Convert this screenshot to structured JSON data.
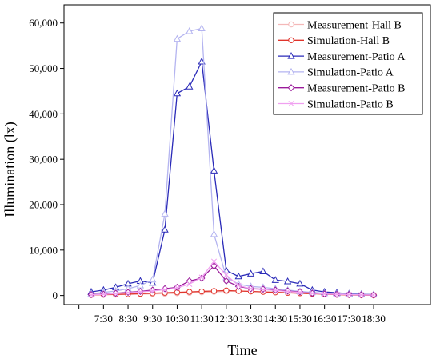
{
  "chart_data": {
    "type": "line",
    "xlabel": "Time",
    "ylabel": "Illumination (lx)",
    "x": [
      "7:00",
      "7:30",
      "8:00",
      "8:30",
      "9:00",
      "9:30",
      "10:00",
      "10:30",
      "11:00",
      "11:30",
      "12:00",
      "12:30",
      "13:00",
      "13:30",
      "14:00",
      "14:30",
      "15:00",
      "15:30",
      "16:00",
      "16:30",
      "17:00",
      "17:30",
      "18:00",
      "18:30"
    ],
    "x_tick_labels": [
      "7:30",
      "8:30",
      "9:30",
      "10:30",
      "11:30",
      "12:30",
      "13:30",
      "14:30",
      "15:30",
      "16:30",
      "17:30",
      "18:30"
    ],
    "ylim": [
      -2000,
      64000
    ],
    "y_ticks": [
      0,
      10000,
      20000,
      30000,
      40000,
      50000,
      60000
    ],
    "y_tick_labels": [
      "0",
      "10,000",
      "20,000",
      "30,000",
      "40,000",
      "50,000",
      "60,000"
    ],
    "legend_position": "top-right",
    "series": [
      {
        "name": "Measurement-Hall B",
        "color": "#f4b8b8",
        "marker": "circle",
        "values": [
          100,
          150,
          200,
          250,
          300,
          350,
          400,
          500,
          600,
          700,
          800,
          900,
          1000,
          900,
          800,
          700,
          600,
          500,
          400,
          300,
          200,
          150,
          100,
          80
        ]
      },
      {
        "name": "Simulation-Hall B",
        "color": "#e0342b",
        "marker": "circle",
        "values": [
          150,
          200,
          250,
          300,
          400,
          500,
          600,
          700,
          800,
          900,
          1000,
          1100,
          1000,
          900,
          800,
          700,
          600,
          500,
          400,
          300,
          200,
          150,
          100,
          80
        ]
      },
      {
        "name": "Measurement-Patio A",
        "color": "#2a2ab8",
        "marker": "triangle",
        "values": [
          800,
          1200,
          1800,
          2600,
          3200,
          2800,
          14500,
          44500,
          46000,
          51500,
          27500,
          5500,
          4200,
          4800,
          5300,
          3400,
          3100,
          2600,
          1200,
          800,
          600,
          400,
          300,
          200
        ]
      },
      {
        "name": "Simulation-Patio A",
        "color": "#b4b4f0",
        "marker": "triangle",
        "values": [
          400,
          700,
          1000,
          1500,
          2200,
          3500,
          18000,
          56500,
          58200,
          58800,
          13500,
          4000,
          2500,
          2000,
          1800,
          1500,
          1200,
          900,
          700,
          500,
          400,
          300,
          250,
          200
        ]
      },
      {
        "name": "Measurement-Patio B",
        "color": "#9a1a9a",
        "marker": "diamond",
        "values": [
          200,
          300,
          500,
          700,
          900,
          1200,
          1500,
          1800,
          3200,
          3800,
          6500,
          3200,
          2000,
          1500,
          1400,
          1200,
          1000,
          800,
          500,
          350,
          250,
          200,
          150,
          100
        ]
      },
      {
        "name": "Simulation-Patio B",
        "color": "#f0a0f0",
        "marker": "x",
        "values": [
          150,
          250,
          400,
          600,
          800,
          1000,
          1300,
          1700,
          2500,
          4000,
          7500,
          4500,
          2200,
          1500,
          1300,
          1100,
          900,
          700,
          500,
          350,
          250,
          200,
          150,
          100
        ]
      }
    ]
  }
}
